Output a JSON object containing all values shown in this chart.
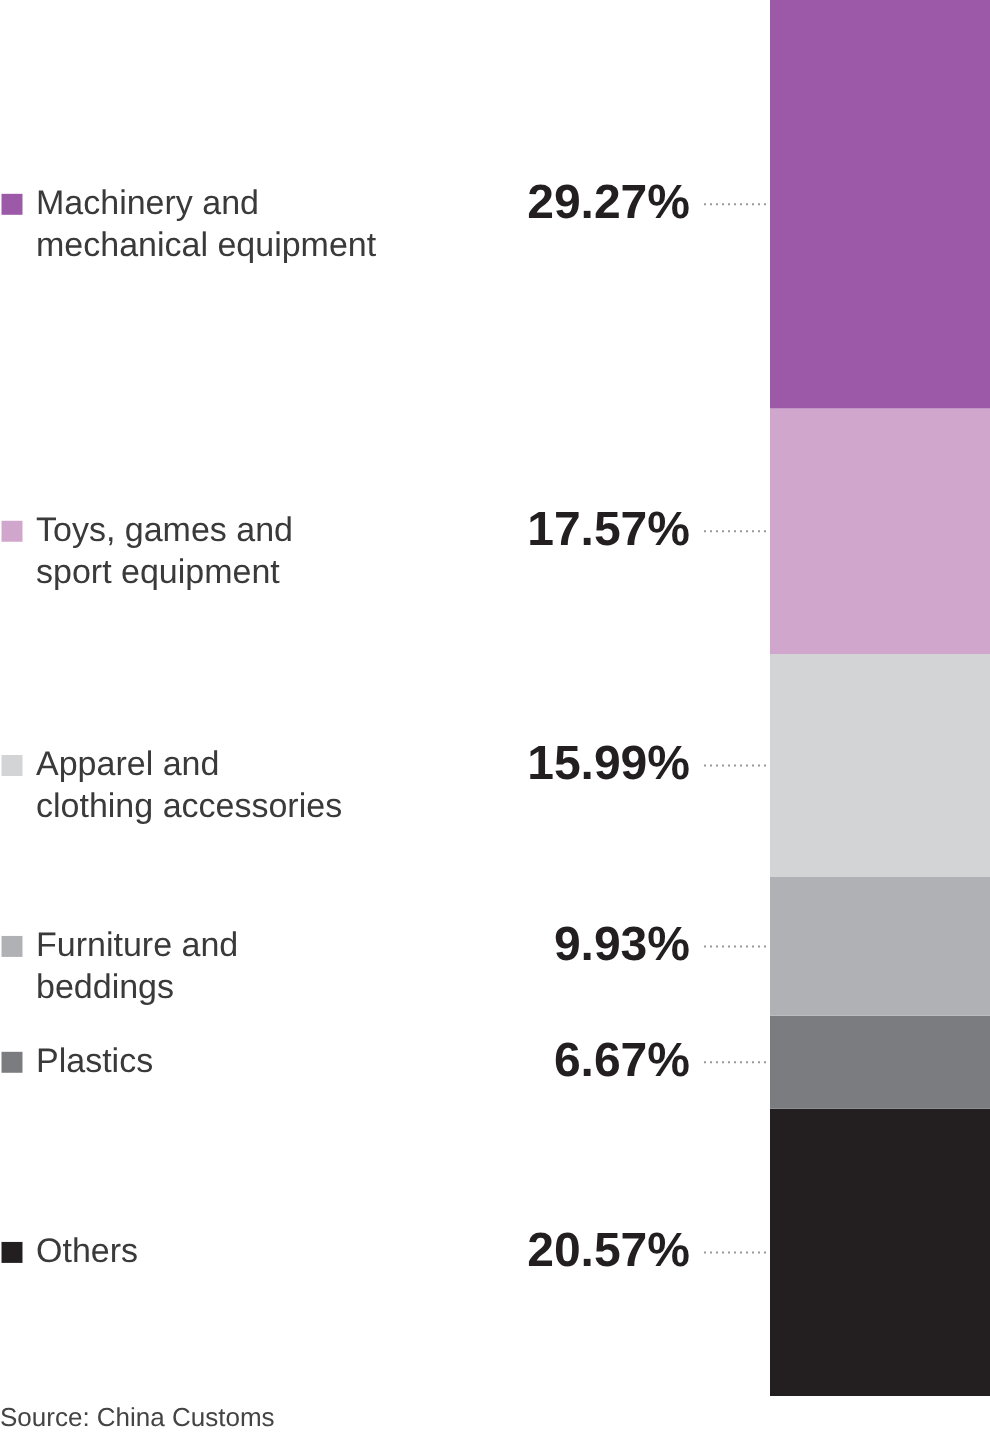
{
  "chart_data": {
    "type": "bar",
    "stacked": true,
    "legend": "left",
    "categories": [
      null
    ],
    "series": [
      {
        "name": "Others",
        "color": "#231f20",
        "values": [
          20.57
        ],
        "value_labels": [
          "20.57%"
        ]
      },
      {
        "name": "Plastics",
        "color": "#7b7c80",
        "values": [
          6.67
        ],
        "value_labels": [
          "6.67%"
        ]
      },
      {
        "name": "Furniture and beddings",
        "color": "#b0b1b4",
        "values": [
          9.93
        ],
        "value_labels": [
          "9.93%"
        ]
      },
      {
        "name": "Apparel and clothing accessories",
        "color": "#d3d4d6",
        "values": [
          15.99
        ],
        "value_labels": [
          "15.99%"
        ]
      },
      {
        "name": "Toys, games and sport equipment",
        "color": "#d1a6cc",
        "values": [
          17.57
        ],
        "value_labels": [
          "17.57%"
        ]
      },
      {
        "name": "Machinery and mechanical equipment",
        "color": "#9b59a8",
        "values": [
          29.27
        ],
        "value_labels": [
          "29.27%"
        ]
      }
    ],
    "annotations": [
      "Source: China Customs"
    ]
  }
}
